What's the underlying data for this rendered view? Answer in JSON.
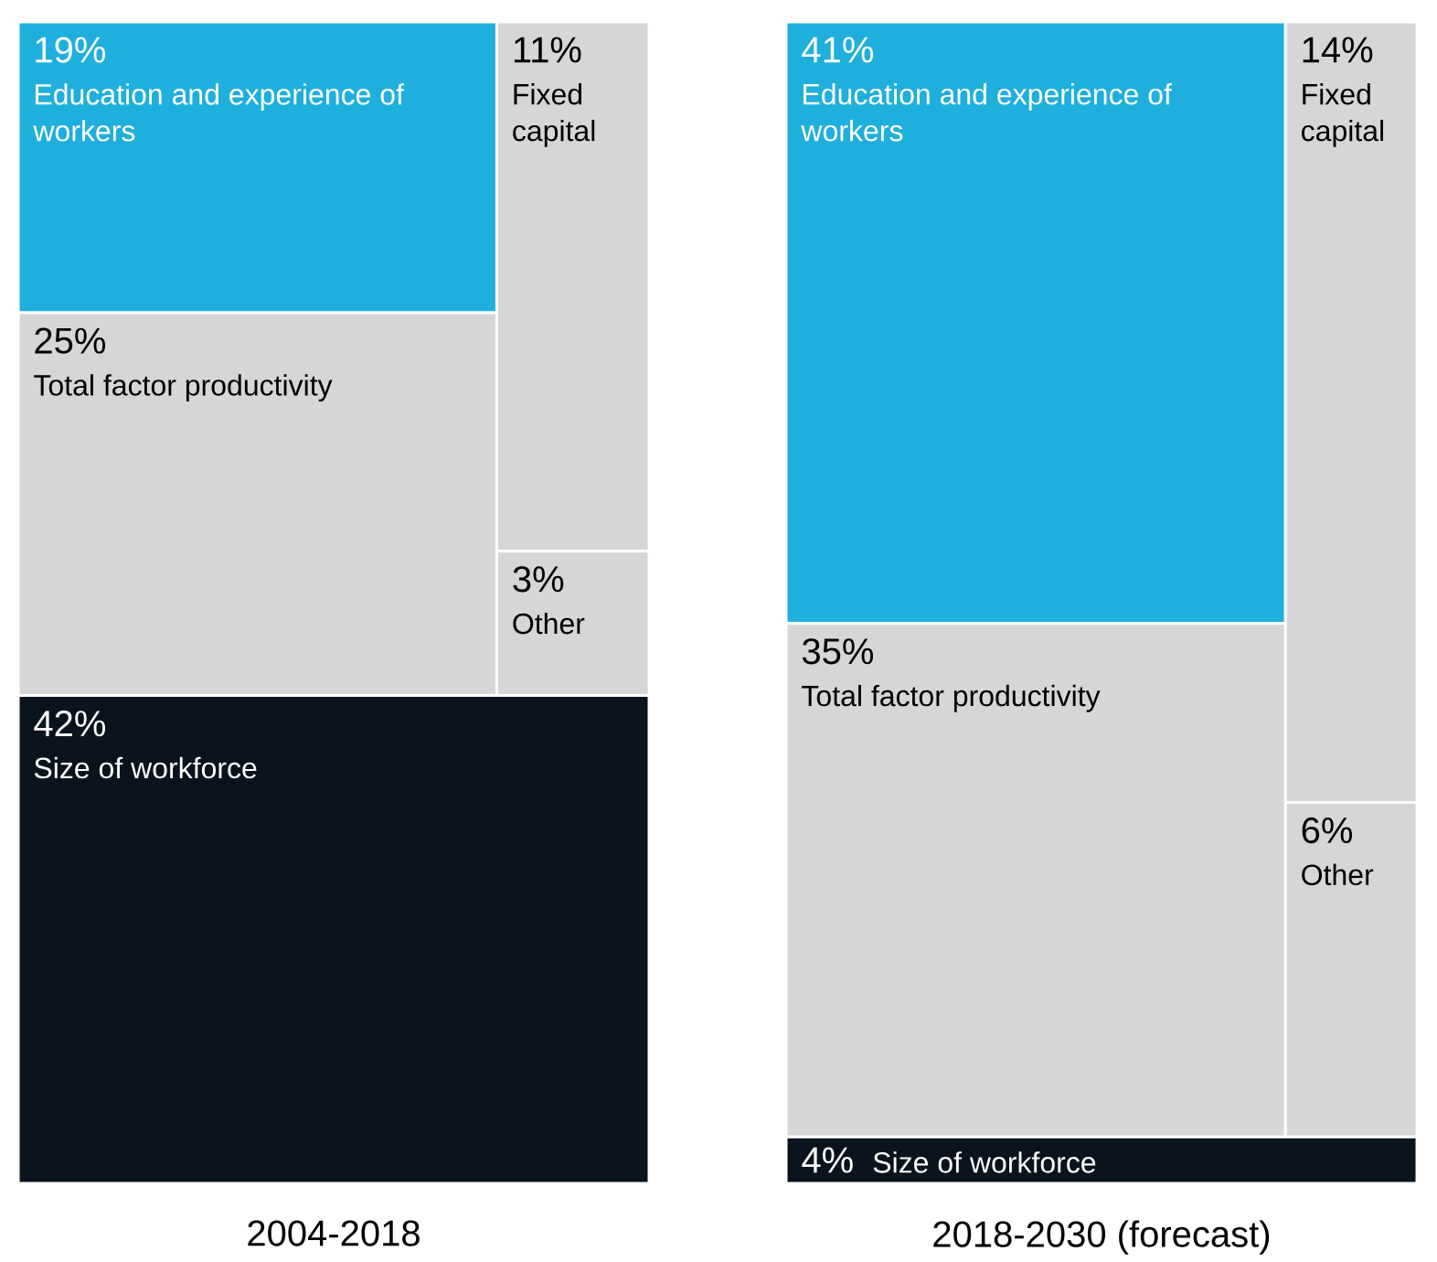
{
  "chart_data": [
    {
      "type": "other",
      "xlabel": "2004-2018",
      "categories": [
        "Education and experience of workers",
        "Total factor productivity",
        "Fixed capital",
        "Other",
        "Size of workforce"
      ],
      "values": [
        19,
        25,
        11,
        3,
        42
      ],
      "value_labels": [
        "19%",
        "25%",
        "11%",
        "3%",
        "42%"
      ],
      "colors": [
        "#1fafdc",
        "#d6d6d6",
        "#d6d6d6",
        "#d6d6d6",
        "#0b141e"
      ]
    },
    {
      "type": "other",
      "xlabel": "2018-2030 (forecast)",
      "categories": [
        "Education and experience of workers",
        "Total factor productivity",
        "Fixed capital",
        "Other",
        "Size of workforce"
      ],
      "values": [
        41,
        35,
        14,
        6,
        4
      ],
      "value_labels": [
        "41%",
        "35%",
        "14%",
        "6%",
        "4%"
      ],
      "colors": [
        "#1fafdc",
        "#d6d6d6",
        "#d6d6d6",
        "#d6d6d6",
        "#0b141e"
      ]
    }
  ]
}
